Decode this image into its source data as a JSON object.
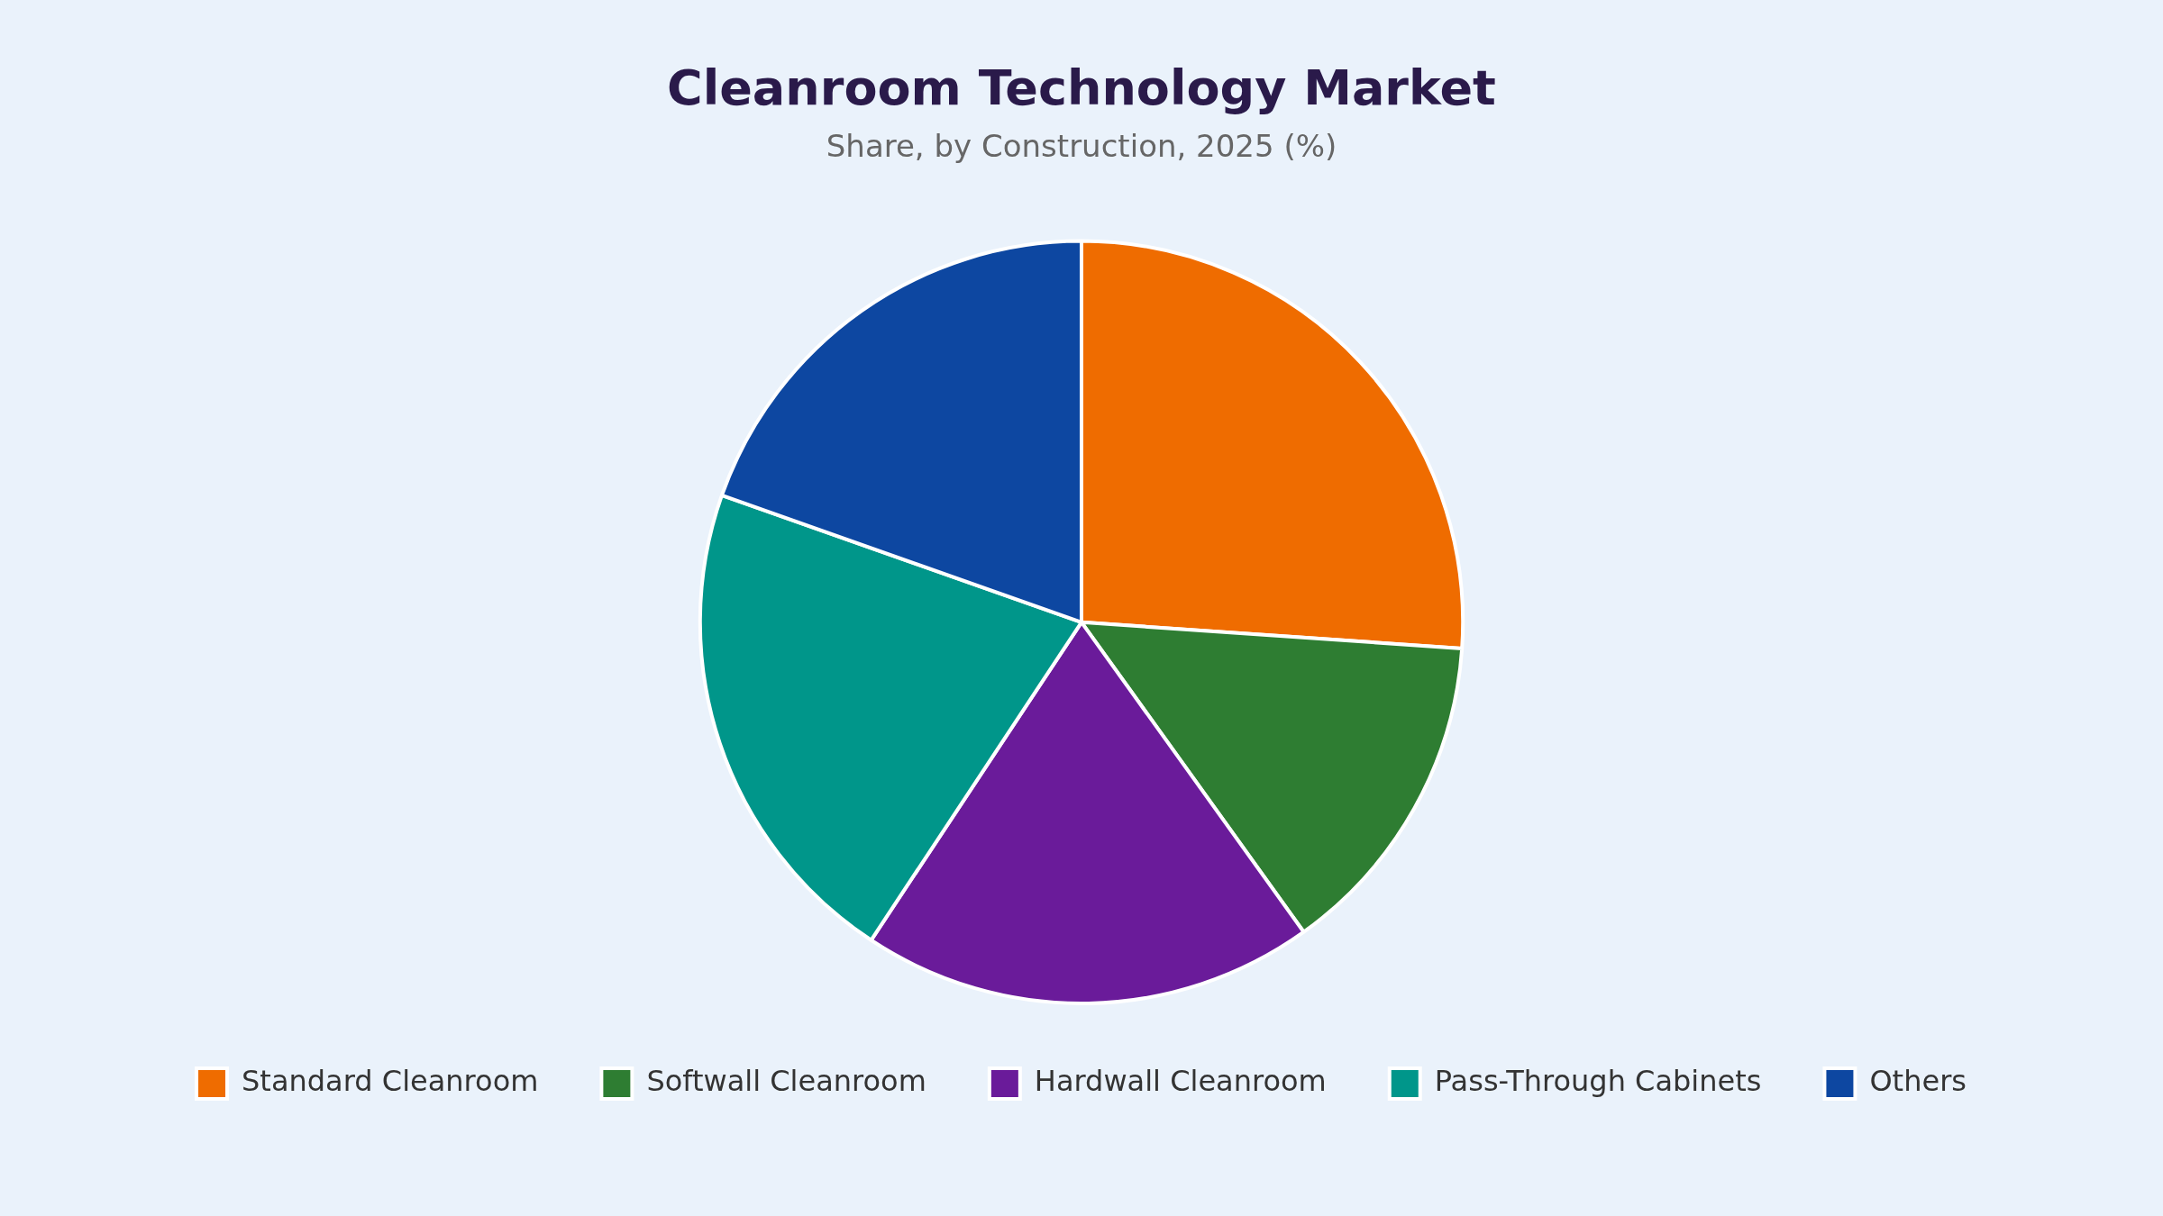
{
  "chart_data": {
    "type": "pie",
    "title": "Cleanroom Technology Market",
    "subtitle": "Share, by Construction, 2025 (%)",
    "categories": [
      "Standard Cleanroom",
      "Softwall Cleanroom",
      "Hardwall Cleanroom",
      "Pass-Through Cabinets",
      "Others"
    ],
    "values": [
      26.1,
      14.0,
      19.2,
      21.1,
      19.6
    ],
    "colors": [
      "#ef6c00",
      "#2e7d32",
      "#6a1b9a",
      "#00968a",
      "#0d47a1"
    ],
    "legend": "bottom"
  }
}
